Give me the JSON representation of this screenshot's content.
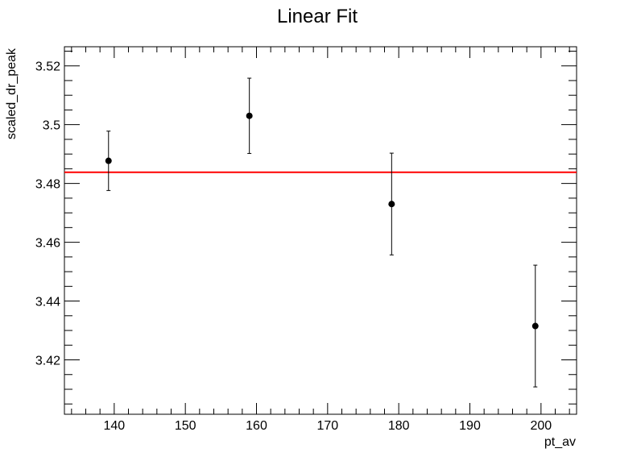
{
  "chart_data": {
    "type": "scatter",
    "title": "Linear Fit",
    "xlabel": "pt_av",
    "ylabel": "scaled_dr_peak",
    "xlim": [
      133,
      205
    ],
    "ylim": [
      3.4015,
      3.5265
    ],
    "x_ticks": [
      140,
      150,
      160,
      170,
      180,
      190,
      200
    ],
    "x_tick_labels": [
      "140",
      "150",
      "160",
      "170",
      "180",
      "190",
      "200"
    ],
    "y_ticks": [
      3.42,
      3.44,
      3.46,
      3.48,
      3.5,
      3.52
    ],
    "y_tick_labels": [
      "3.42",
      "3.44",
      "3.46",
      "3.48",
      "3.5",
      "3.52"
    ],
    "grid": false,
    "series": [
      {
        "kind": "points-with-errors",
        "color": "#000000",
        "points": [
          {
            "x": 139.2,
            "y": 3.4877,
            "err": 0.0101
          },
          {
            "x": 159.0,
            "y": 3.503,
            "err": 0.0128
          },
          {
            "x": 179.0,
            "y": 3.473,
            "err": 0.0173
          },
          {
            "x": 199.2,
            "y": 3.4315,
            "err": 0.0207
          }
        ]
      },
      {
        "kind": "fit-line",
        "color": "#ff0000",
        "x_range": [
          133,
          205
        ],
        "slope": 0,
        "intercept": 3.4838
      }
    ]
  }
}
